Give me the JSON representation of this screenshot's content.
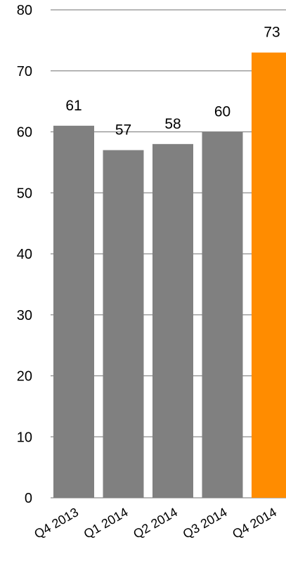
{
  "chart_data": {
    "type": "bar",
    "categories": [
      "Q4 2013",
      "Q1 2014",
      "Q2 2014",
      "Q3 2014",
      "Q4 2014"
    ],
    "values": [
      61,
      57,
      58,
      60,
      73
    ],
    "data_labels": [
      "61",
      "57",
      "58",
      "60",
      "73"
    ],
    "bar_colors": [
      "#808080",
      "#808080",
      "#808080",
      "#808080",
      "#ff8c00"
    ],
    "title": "",
    "xlabel": "",
    "ylabel": "",
    "ylim": [
      0,
      80
    ],
    "yticks": [
      0,
      10,
      20,
      30,
      40,
      50,
      60,
      70,
      80
    ],
    "ytick_labels": [
      "0",
      "10",
      "20",
      "30",
      "40",
      "50",
      "60",
      "70",
      "80"
    ],
    "grid": true,
    "gridline_color": "#8c8c8c",
    "legend": "none"
  }
}
